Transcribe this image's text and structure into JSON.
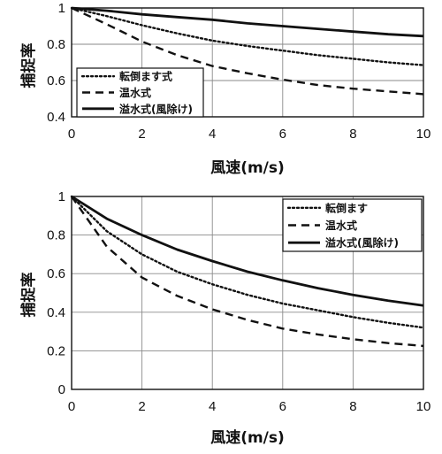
{
  "chart_data": [
    {
      "type": "line",
      "xlabel": "風速(m/s)",
      "ylabel": "捕捉率",
      "xlim": [
        0,
        10
      ],
      "ylim": [
        0.4,
        1
      ],
      "xticks": [
        "0",
        "2",
        "4",
        "6",
        "8",
        "10"
      ],
      "yticks": [
        "0.4",
        "0.6",
        "0.8",
        "1"
      ],
      "grid": true,
      "legend_position": "bottom-left",
      "x": [
        0,
        1,
        2,
        3,
        4,
        5,
        6,
        7,
        8,
        9,
        10
      ],
      "series": [
        {
          "name": "転倒ます式",
          "style": "dotted",
          "values": [
            1.0,
            0.955,
            0.905,
            0.86,
            0.82,
            0.79,
            0.765,
            0.74,
            0.72,
            0.7,
            0.685
          ]
        },
        {
          "name": "温水式",
          "style": "dashed",
          "values": [
            1.0,
            0.91,
            0.815,
            0.74,
            0.68,
            0.64,
            0.605,
            0.575,
            0.555,
            0.54,
            0.525
          ]
        },
        {
          "name": "溢水式(風除け)",
          "style": "solid",
          "values": [
            1.0,
            0.985,
            0.965,
            0.95,
            0.935,
            0.915,
            0.9,
            0.885,
            0.87,
            0.855,
            0.845
          ]
        }
      ]
    },
    {
      "type": "line",
      "xlabel": "風速(m/s)",
      "ylabel": "捕捉率",
      "xlim": [
        0,
        10
      ],
      "ylim": [
        0,
        1
      ],
      "xticks": [
        "0",
        "2",
        "4",
        "6",
        "8",
        "10"
      ],
      "yticks": [
        "0",
        "0.2",
        "0.4",
        "0.6",
        "0.8",
        "1"
      ],
      "grid": true,
      "legend_position": "top-right",
      "x": [
        0,
        1,
        2,
        3,
        4,
        5,
        6,
        7,
        8,
        9,
        10
      ],
      "series": [
        {
          "name": "転倒ます",
          "style": "dotted",
          "values": [
            1.0,
            0.82,
            0.7,
            0.61,
            0.545,
            0.49,
            0.445,
            0.41,
            0.375,
            0.345,
            0.32
          ]
        },
        {
          "name": "温水式",
          "style": "dashed",
          "values": [
            1.0,
            0.74,
            0.58,
            0.485,
            0.415,
            0.36,
            0.315,
            0.285,
            0.26,
            0.24,
            0.225
          ]
        },
        {
          "name": "溢水式(風除け)",
          "style": "solid",
          "values": [
            1.0,
            0.885,
            0.8,
            0.725,
            0.665,
            0.61,
            0.565,
            0.525,
            0.49,
            0.46,
            0.435
          ]
        }
      ]
    }
  ]
}
